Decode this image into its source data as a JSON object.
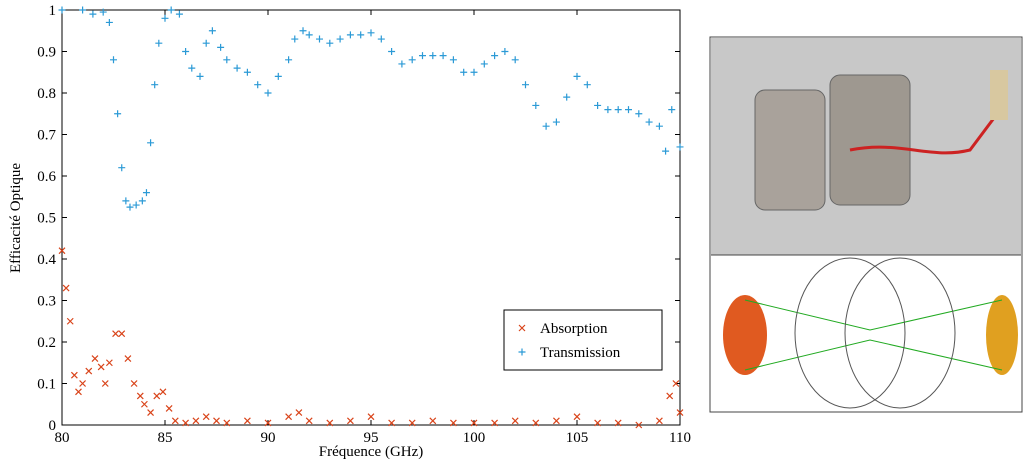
{
  "chart_data": {
    "type": "scatter",
    "x_label": "Fréquence (GHz)",
    "y_label": "Efficacité Optique",
    "xlim": [
      80,
      110
    ],
    "xticks": [
      80,
      85,
      90,
      95,
      100,
      105,
      110
    ],
    "ylim": [
      0,
      1
    ],
    "yticks": [
      0,
      0.1,
      0.2,
      0.3,
      0.4,
      0.5,
      0.6,
      0.7,
      0.8,
      0.9,
      1
    ],
    "legend": "lower right",
    "series": [
      {
        "name": "Absorption",
        "color": "#d9441a",
        "marker": "x",
        "x": [
          80,
          80.2,
          80.4,
          80.6,
          80.8,
          81,
          81.3,
          81.6,
          81.9,
          82.1,
          82.3,
          82.6,
          82.9,
          83.2,
          83.5,
          83.8,
          84,
          84.3,
          84.6,
          84.9,
          85.2,
          85.5,
          86,
          86.5,
          87,
          87.5,
          88,
          89,
          90,
          91,
          91.5,
          92,
          93,
          94,
          95,
          96,
          97,
          98,
          99,
          100,
          101,
          102,
          103,
          104,
          105,
          106,
          107,
          108,
          109,
          109.5,
          109.8,
          110
        ],
        "values": [
          0.42,
          0.33,
          0.25,
          0.12,
          0.08,
          0.1,
          0.13,
          0.16,
          0.14,
          0.1,
          0.15,
          0.22,
          0.22,
          0.16,
          0.1,
          0.07,
          0.05,
          0.03,
          0.07,
          0.08,
          0.04,
          0.01,
          0.005,
          0.01,
          0.02,
          0.01,
          0.005,
          0.01,
          0.005,
          0.02,
          0.03,
          0.01,
          0.005,
          0.01,
          0.02,
          0.005,
          0.005,
          0.01,
          0.005,
          0.005,
          0.005,
          0.01,
          0.005,
          0.01,
          0.02,
          0.005,
          0.005,
          0,
          0.01,
          0.07,
          0.1,
          0.03
        ]
      },
      {
        "name": "Transmission",
        "color": "#2b9ad6",
        "marker": "+",
        "x": [
          80,
          81,
          81.5,
          82,
          82.3,
          82.5,
          82.7,
          82.9,
          83.1,
          83.3,
          83.6,
          83.9,
          84.1,
          84.3,
          84.5,
          84.7,
          85,
          85.3,
          85.7,
          86,
          86.3,
          86.7,
          87,
          87.3,
          87.7,
          88,
          88.5,
          89,
          89.5,
          90,
          90.5,
          91,
          91.3,
          91.7,
          92,
          92.5,
          93,
          93.5,
          94,
          94.5,
          95,
          95.5,
          96,
          96.5,
          97,
          97.5,
          98,
          98.5,
          99,
          99.5,
          100,
          100.5,
          101,
          101.5,
          102,
          102.5,
          103,
          103.5,
          104,
          104.5,
          105,
          105.5,
          106,
          106.5,
          107,
          107.5,
          108,
          108.5,
          109,
          109.3,
          109.6,
          110
        ],
        "values": [
          1,
          1,
          0.99,
          0.995,
          0.97,
          0.88,
          0.75,
          0.62,
          0.54,
          0.525,
          0.53,
          0.54,
          0.56,
          0.68,
          0.82,
          0.92,
          0.98,
          1,
          0.99,
          0.9,
          0.86,
          0.84,
          0.92,
          0.95,
          0.91,
          0.88,
          0.86,
          0.85,
          0.82,
          0.8,
          0.84,
          0.88,
          0.93,
          0.95,
          0.94,
          0.93,
          0.92,
          0.93,
          0.94,
          0.94,
          0.945,
          0.93,
          0.9,
          0.87,
          0.88,
          0.89,
          0.89,
          0.89,
          0.88,
          0.85,
          0.85,
          0.87,
          0.89,
          0.9,
          0.88,
          0.82,
          0.77,
          0.72,
          0.73,
          0.79,
          0.84,
          0.82,
          0.77,
          0.76,
          0.76,
          0.76,
          0.75,
          0.73,
          0.72,
          0.66,
          0.76,
          0.67
        ]
      }
    ]
  }
}
